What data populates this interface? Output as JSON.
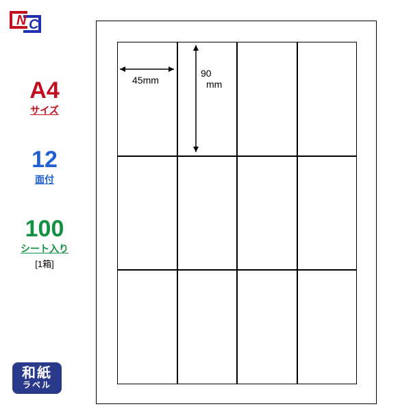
{
  "logo": {
    "letter_n": "N",
    "letter_c": "C",
    "color_n": "#c01020",
    "color_c": "#2030b0"
  },
  "specs": {
    "size": {
      "value": "A4",
      "unit": "サイズ",
      "color": "#c01020",
      "fontsize": 34
    },
    "faces": {
      "value": "12",
      "unit": "面付",
      "color": "#2060d0",
      "fontsize": 34
    },
    "sheets": {
      "value": "100",
      "unit": "シート入り",
      "sub": "[1箱]",
      "color": "#109040",
      "fontsize": 34
    }
  },
  "paper_badge": {
    "line1": "和紙",
    "line2": "ラベル",
    "bg": "#2a3a8a"
  },
  "label_grid": {
    "cols": 4,
    "rows": 3,
    "cell_width_label": "45mm",
    "cell_height_label": "90",
    "cell_height_unit": "mm"
  },
  "colors": {
    "line": "#000000",
    "bg": "#ffffff"
  }
}
